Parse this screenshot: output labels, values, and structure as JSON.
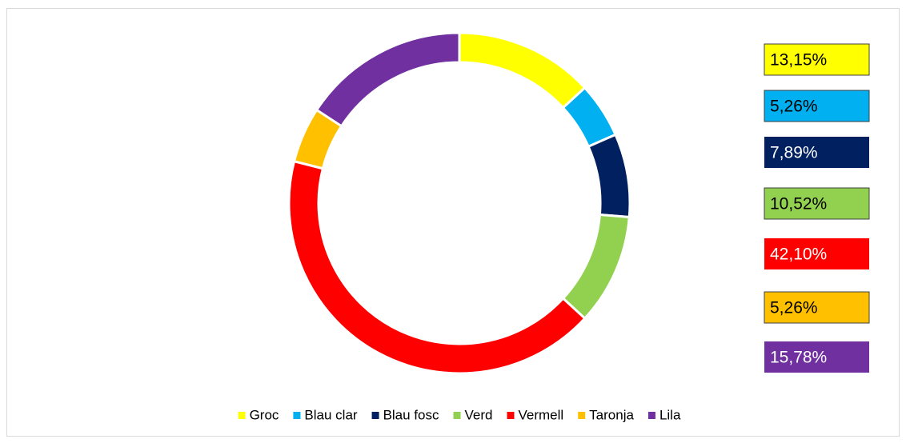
{
  "chart_data": {
    "type": "donut",
    "categories": [
      "Groc",
      "Blau clar",
      "Blau fosc",
      "Verd",
      "Vermell",
      "Taronja",
      "Lila"
    ],
    "values": [
      13.15,
      5.26,
      7.89,
      10.52,
      42.1,
      5.26,
      15.78
    ],
    "value_labels": [
      "13,15%",
      "5,26%",
      "7,89%",
      "10,52%",
      "42,10%",
      "5,26%",
      "15,78%"
    ],
    "colors": [
      "#ffff00",
      "#00b0f0",
      "#002060",
      "#92d050",
      "#ff0000",
      "#ffc000",
      "#7030a0"
    ],
    "legend": "bottom"
  }
}
